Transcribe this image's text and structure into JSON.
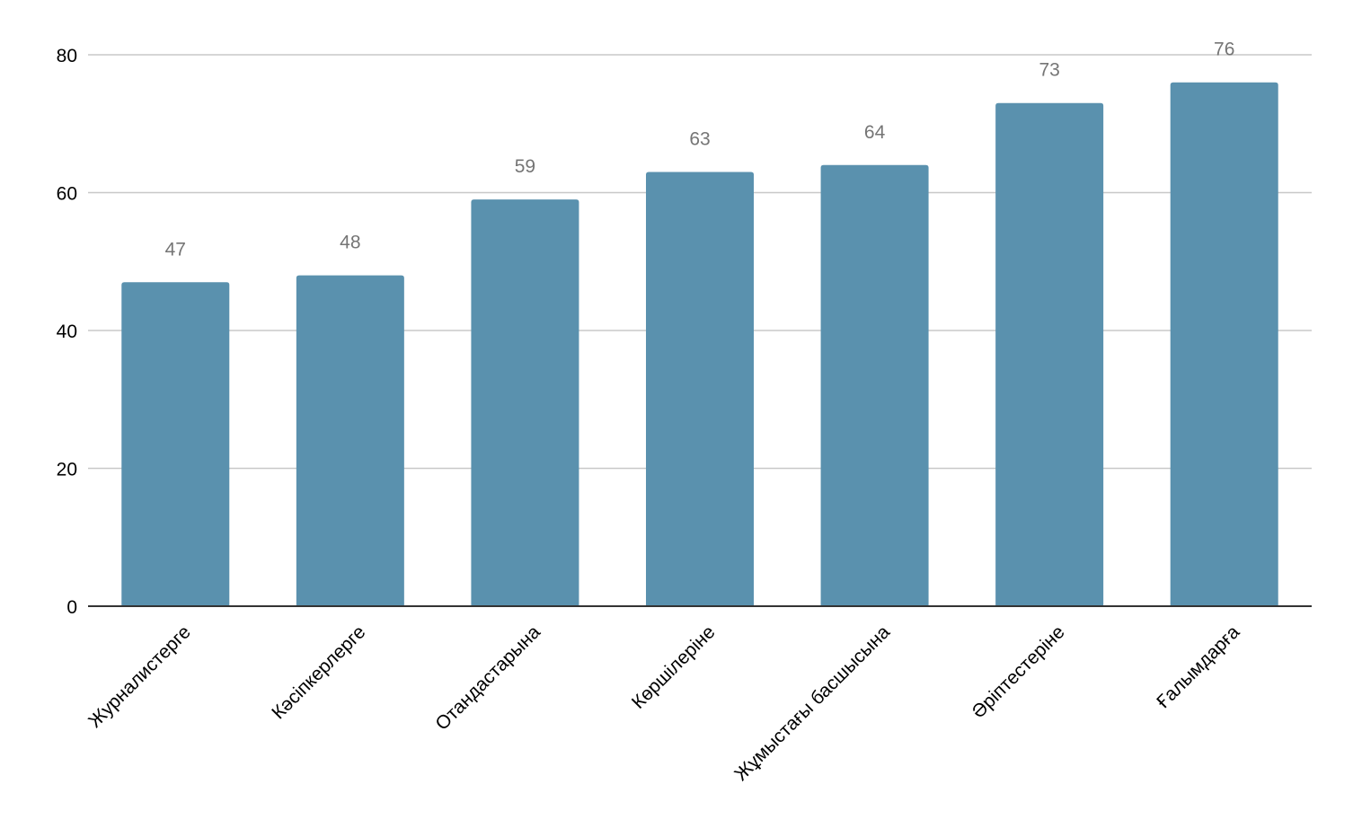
{
  "chart_data": {
    "type": "bar",
    "categories": [
      "Журналистерге",
      "Кәсіпкерлерге",
      "Отандастарына",
      "Көршілеріне",
      "Жұмыстағы басшысына",
      "Әріптестеріне",
      "Ғалымдарға"
    ],
    "values": [
      47,
      48,
      59,
      63,
      64,
      73,
      76
    ],
    "ylim": [
      0,
      80
    ],
    "yticks": [
      0,
      20,
      40,
      60,
      80
    ],
    "grid": true,
    "legend": "none",
    "bar_color": "#5a91ae",
    "data_label_color": "#757575"
  }
}
